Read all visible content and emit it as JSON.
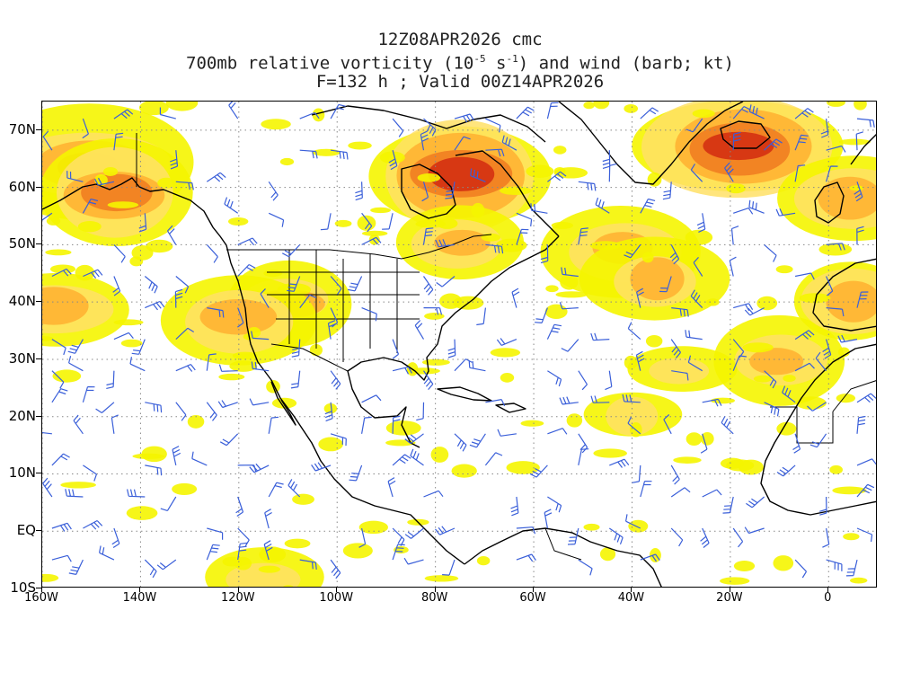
{
  "title": {
    "line1": "12Z08APR2026 cmc",
    "line2_prefix": "700mb relative vorticity (10",
    "line2_exp1": "-5",
    "line2_mid": " s",
    "line2_exp2": "-1",
    "line2_suffix": ") and wind (barb; kt)",
    "line3": "F=132 h ; Valid 00Z14APR2026"
  },
  "map": {
    "projection": "cylindrical equidistant",
    "lon_range": [
      -160,
      10
    ],
    "lat_range": [
      -10,
      75
    ],
    "grid": "dotted",
    "shading_colors": [
      "#f5f500",
      "#ffe066",
      "#ffb030",
      "#f07a20",
      "#d22a10"
    ],
    "barb_color": "#3a5fd9",
    "coastline_color": "#000000"
  },
  "lat_labels": [
    {
      "lat": 70,
      "text": "70N"
    },
    {
      "lat": 60,
      "text": "60N"
    },
    {
      "lat": 50,
      "text": "50N"
    },
    {
      "lat": 40,
      "text": "40N"
    },
    {
      "lat": 30,
      "text": "30N"
    },
    {
      "lat": 20,
      "text": "20N"
    },
    {
      "lat": 10,
      "text": "10N"
    },
    {
      "lat": 0,
      "text": "EQ"
    },
    {
      "lat": -10,
      "text": "10S"
    }
  ],
  "lon_labels": [
    {
      "lon": -160,
      "text": "160W"
    },
    {
      "lon": -140,
      "text": "140W"
    },
    {
      "lon": -120,
      "text": "120W"
    },
    {
      "lon": -100,
      "text": "100W"
    },
    {
      "lon": -80,
      "text": "80W"
    },
    {
      "lon": -60,
      "text": "60W"
    },
    {
      "lon": -40,
      "text": "40W"
    },
    {
      "lon": -20,
      "text": "20W"
    },
    {
      "lon": 0,
      "text": "0"
    }
  ],
  "vorticity_features": [
    {
      "lon": -75,
      "lat": 62,
      "strength": 4
    },
    {
      "lon": -150,
      "lat": 64,
      "strength": 3
    },
    {
      "lon": -145,
      "lat": 59,
      "strength": 3
    },
    {
      "lon": -18,
      "lat": 67,
      "strength": 4
    },
    {
      "lon": -42,
      "lat": 49,
      "strength": 2
    },
    {
      "lon": -35,
      "lat": 44,
      "strength": 2
    },
    {
      "lon": -157,
      "lat": 39,
      "strength": 2
    },
    {
      "lon": -110,
      "lat": 40,
      "strength": 2
    },
    {
      "lon": -75,
      "lat": 50,
      "strength": 2
    },
    {
      "lon": -40,
      "lat": 20,
      "strength": 1
    },
    {
      "lon": -10,
      "lat": 30,
      "strength": 2
    },
    {
      "lon": 5,
      "lat": 40,
      "strength": 2
    },
    {
      "lon": -115,
      "lat": -8,
      "strength": 1
    },
    {
      "lon": -120,
      "lat": 37,
      "strength": 2
    },
    {
      "lon": 5,
      "lat": 58,
      "strength": 2
    },
    {
      "lon": -30,
      "lat": 28,
      "strength": 1
    }
  ]
}
